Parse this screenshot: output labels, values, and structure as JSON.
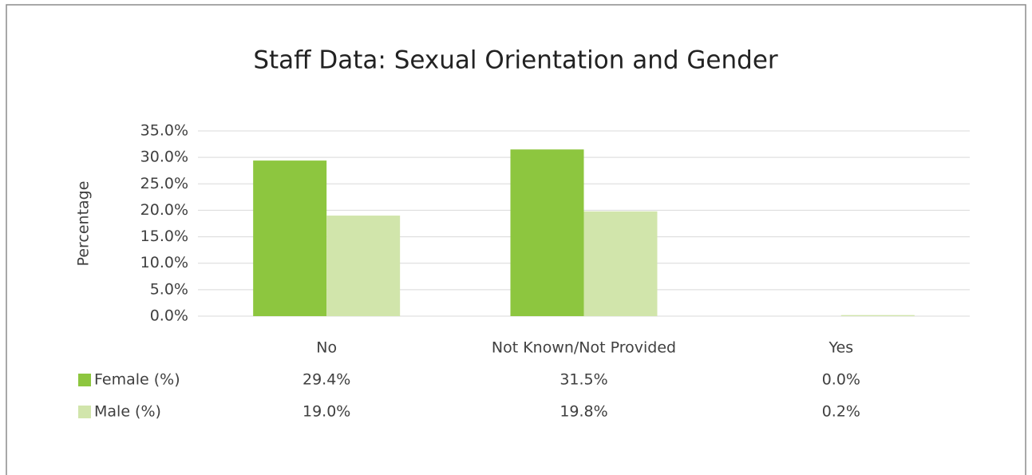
{
  "chart_data": {
    "type": "bar",
    "title": "Staff Data: Sexual Orientation and Gender",
    "y_label": "Percentage",
    "categories": [
      "No",
      "Not Known/Not Provided",
      "Yes"
    ],
    "series": [
      {
        "name": "Female (%)",
        "color": "#8dc63f",
        "values": [
          29.4,
          31.5,
          0.0
        ],
        "value_labels": [
          "29.4%",
          "31.5%",
          "0.0%"
        ]
      },
      {
        "name": "Male (%)",
        "color": "#d1e5ab",
        "values": [
          19.0,
          19.8,
          0.2
        ],
        "value_labels": [
          "19.0%",
          "19.8%",
          "0.2%"
        ]
      }
    ],
    "ylim": [
      0,
      35
    ],
    "yticks": [
      {
        "value": 0,
        "label": "0.0%"
      },
      {
        "value": 5,
        "label": "5.0%"
      },
      {
        "value": 10,
        "label": "10.0%"
      },
      {
        "value": 15,
        "label": "15.0%"
      },
      {
        "value": 20,
        "label": "20.0%"
      },
      {
        "value": 25,
        "label": "25.0%"
      },
      {
        "value": 30,
        "label": "30.0%"
      },
      {
        "value": 35,
        "label": "35.0%"
      }
    ],
    "grid": true
  }
}
